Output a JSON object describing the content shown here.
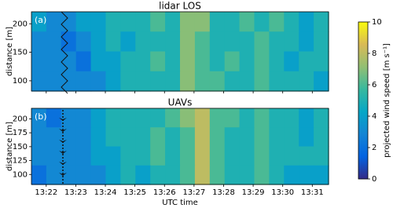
{
  "chart_data": [
    {
      "type": "heatmap",
      "title": "lidar LOS",
      "annotation": "(a)",
      "ylabel": "distance [m]",
      "xlim": [
        801.5,
        811.55
      ],
      "ylim": [
        82,
        221
      ],
      "yticks": [
        100,
        150,
        200
      ],
      "values": [
        [
          4,
          3,
          3,
          4,
          4,
          5,
          5,
          5,
          6,
          5,
          7,
          7,
          5,
          5,
          6,
          5,
          6,
          5,
          4,
          5
        ],
        [
          3,
          3,
          2,
          3,
          4,
          5,
          4,
          5,
          5,
          5,
          7,
          6,
          5,
          5,
          5,
          6,
          5,
          5,
          4,
          5
        ],
        [
          3,
          3,
          3,
          2,
          4,
          4,
          5,
          5,
          6,
          5,
          7,
          6,
          5,
          6,
          5,
          6,
          5,
          4,
          5,
          5
        ],
        [
          3,
          3,
          3,
          3,
          3,
          4,
          5,
          5,
          5,
          5,
          7,
          6,
          6,
          5,
          5,
          6,
          5,
          5,
          5,
          4
        ]
      ]
    },
    {
      "type": "heatmap",
      "title": "UAVs",
      "annotation": "(b)",
      "ylabel": "distance [m]",
      "xlabel": "UTC time",
      "xlim": [
        801.5,
        811.55
      ],
      "ylim": [
        82,
        219
      ],
      "yticks": [
        100,
        125,
        150,
        175,
        200
      ],
      "xticks": [
        {
          "value": 802,
          "label": "13:22"
        },
        {
          "value": 803,
          "label": "13:23"
        },
        {
          "value": 804,
          "label": "13:24"
        },
        {
          "value": 805,
          "label": "13:25"
        },
        {
          "value": 806,
          "label": "13:26"
        },
        {
          "value": 807,
          "label": "13:27"
        },
        {
          "value": 808,
          "label": "13:28"
        },
        {
          "value": 809,
          "label": "13:29"
        },
        {
          "value": 810,
          "label": "13:30"
        },
        {
          "value": 811,
          "label": "13:31"
        }
      ],
      "values": [
        [
          3,
          2,
          3,
          3,
          4,
          5,
          5,
          5,
          5,
          6,
          7,
          8,
          6,
          6,
          5,
          6,
          5,
          5,
          4,
          5
        ],
        [
          3,
          3,
          3,
          3,
          4,
          5,
          5,
          5,
          6,
          5,
          6,
          8,
          6,
          5,
          5,
          6,
          5,
          5,
          4,
          5
        ],
        [
          3,
          3,
          3,
          3,
          4,
          4,
          5,
          5,
          6,
          5,
          6,
          8,
          6,
          5,
          5,
          6,
          5,
          5,
          5,
          5
        ],
        [
          2,
          3,
          3,
          3,
          3,
          4,
          5,
          4,
          5,
          5,
          6,
          8,
          6,
          5,
          5,
          6,
          5,
          4,
          4,
          4
        ]
      ]
    }
  ],
  "colorbar": {
    "label": "projected wind speed [m s⁻¹]",
    "lim": [
      0,
      10
    ],
    "ticks": [
      0,
      2,
      4,
      6,
      8,
      10
    ],
    "colormap": [
      "#352a87",
      "#0363e1",
      "#1485d4",
      "#06a7c6",
      "#38b99e",
      "#92bf73",
      "#d9ba56",
      "#f9fb0e"
    ]
  }
}
